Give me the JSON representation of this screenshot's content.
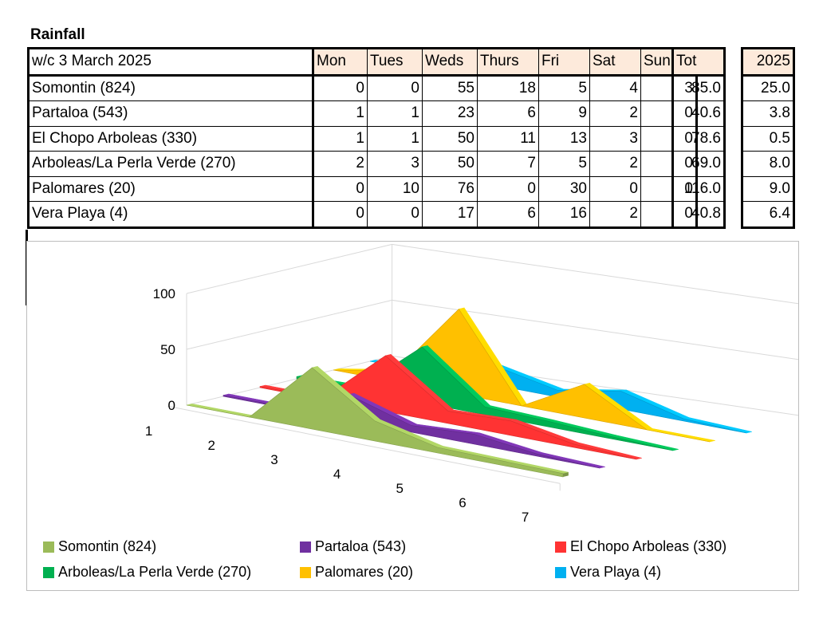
{
  "title": "Rainfall",
  "table": {
    "header_label": "w/c 3 March  2025",
    "days": [
      "Mon",
      "Tues",
      "Weds",
      "Thurs",
      "Fri",
      "Sat",
      "Sun"
    ],
    "tot_header": "Tot",
    "year_header": "2025",
    "rows": [
      {
        "station": "Somontin (824)",
        "values": [
          "0",
          "0",
          "55",
          "18",
          "5",
          "4",
          "3"
        ],
        "tot": "85.0",
        "year": "25.0"
      },
      {
        "station": "Partaloa (543)",
        "values": [
          "1",
          "1",
          "23",
          "6",
          "9",
          "2",
          "0"
        ],
        "tot": "40.6",
        "year": "3.8"
      },
      {
        "station": "El Chopo Arboleas (330)",
        "values": [
          "1",
          "1",
          "50",
          "11",
          "13",
          "3",
          "0"
        ],
        "tot": "78.6",
        "year": "0.5"
      },
      {
        "station": "Arboleas/La Perla Verde (270)",
        "values": [
          "2",
          "3",
          "50",
          "7",
          "5",
          "2",
          "0"
        ],
        "tot": "69.0",
        "year": "8.0"
      },
      {
        "station": "Palomares (20)",
        "values": [
          "0",
          "10",
          "76",
          "0",
          "30",
          "0",
          "0"
        ],
        "tot": "116.0",
        "year": "9.0"
      },
      {
        "station": "Vera Playa (4)",
        "values": [
          "0",
          "0",
          "17",
          "6",
          "16",
          "2",
          "0"
        ],
        "tot": "40.8",
        "year": "6.4"
      }
    ]
  },
  "chart_data": {
    "type": "area",
    "subtype": "3d-area",
    "categories": [
      "1",
      "2",
      "3",
      "4",
      "5",
      "6",
      "7"
    ],
    "ylim": [
      0,
      100
    ],
    "yticks": [
      "0",
      "50",
      "100"
    ],
    "grid": true,
    "legend_position": "bottom",
    "series": [
      {
        "name": "Somontin (824)",
        "color": "#9bbb59",
        "values": [
          0,
          0,
          55,
          18,
          5,
          4,
          3
        ]
      },
      {
        "name": "Partaloa (543)",
        "color": "#7030a0",
        "values": [
          1,
          1,
          23,
          6,
          9,
          2,
          0
        ]
      },
      {
        "name": "El Chopo Arboleas (330)",
        "color": "#ff3333",
        "values": [
          1,
          1,
          50,
          11,
          13,
          3,
          0
        ]
      },
      {
        "name": "Arboleas/La Perla Verde (270)",
        "color": "#00b050",
        "values": [
          2,
          3,
          50,
          7,
          5,
          2,
          0
        ]
      },
      {
        "name": "Palomares (20)",
        "color": "#ffc000",
        "values": [
          0,
          10,
          76,
          0,
          30,
          0,
          0
        ]
      },
      {
        "name": "Vera Playa (4)",
        "color": "#00b0f0",
        "values": [
          0,
          0,
          17,
          6,
          16,
          2,
          0
        ]
      }
    ]
  }
}
